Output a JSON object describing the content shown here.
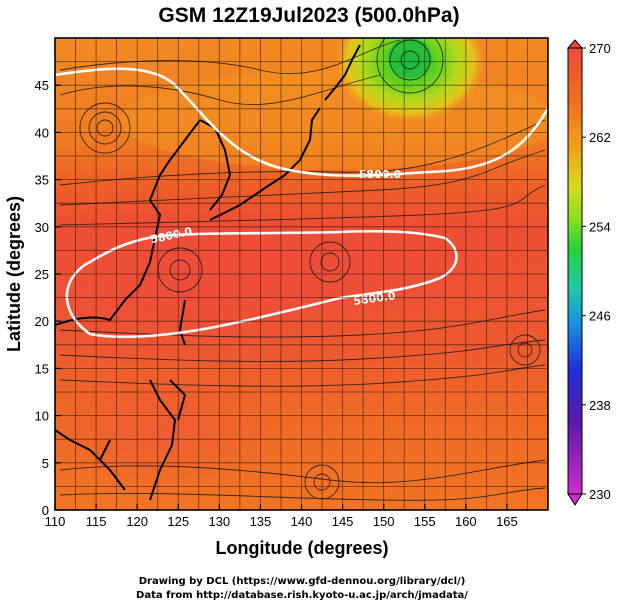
{
  "title": "GSM 12Z19Jul2023 (500.0hPa)",
  "xlabel": "Longitude (degrees)",
  "ylabel": "Latitude  (degrees)",
  "footer": {
    "line1": "Drawing by DCL (https://www.gfd-dennou.org/library/dcl/)",
    "line2": "Data from http://database.rish.kyoto-u.ac.jp/arch/jmadata/"
  },
  "chart_data": {
    "type": "heatmap",
    "title": "GSM 12Z19Jul2023 (500.0hPa)",
    "xlabel": "Longitude (degrees)",
    "ylabel": "Latitude  (degrees)",
    "xlim": [
      110,
      170
    ],
    "ylim": [
      0,
      50
    ],
    "x_ticks": [
      "110",
      "115",
      "120",
      "125",
      "130",
      "135",
      "140",
      "145",
      "150",
      "155",
      "160",
      "165"
    ],
    "y_ticks": [
      "0",
      "5",
      "10",
      "15",
      "20",
      "25",
      "30",
      "35",
      "40",
      "45"
    ],
    "grid": true,
    "colorbar": {
      "range": [
        230,
        270
      ],
      "tick_labels": [
        "270",
        "262",
        "254",
        "246",
        "238",
        "230"
      ],
      "colors": [
        "#cc2ecc",
        "#5a1aa8",
        "#1f2fd6",
        "#1b8fe0",
        "#20c8a8",
        "#28d23c",
        "#8fe01c",
        "#d8d81c",
        "#f0a01a",
        "#f07020",
        "#ec4a3a"
      ]
    },
    "contours": [
      {
        "label": "5800.0",
        "lon": 147.5,
        "lat": 38.6
      },
      {
        "label": "5800.0",
        "lon": 124.0,
        "lat": 30.5
      },
      {
        "label": "5800.0",
        "lon": 149.0,
        "lat": 24.5
      }
    ],
    "cold_low_center": {
      "lon": 152,
      "lat": 48
    }
  }
}
